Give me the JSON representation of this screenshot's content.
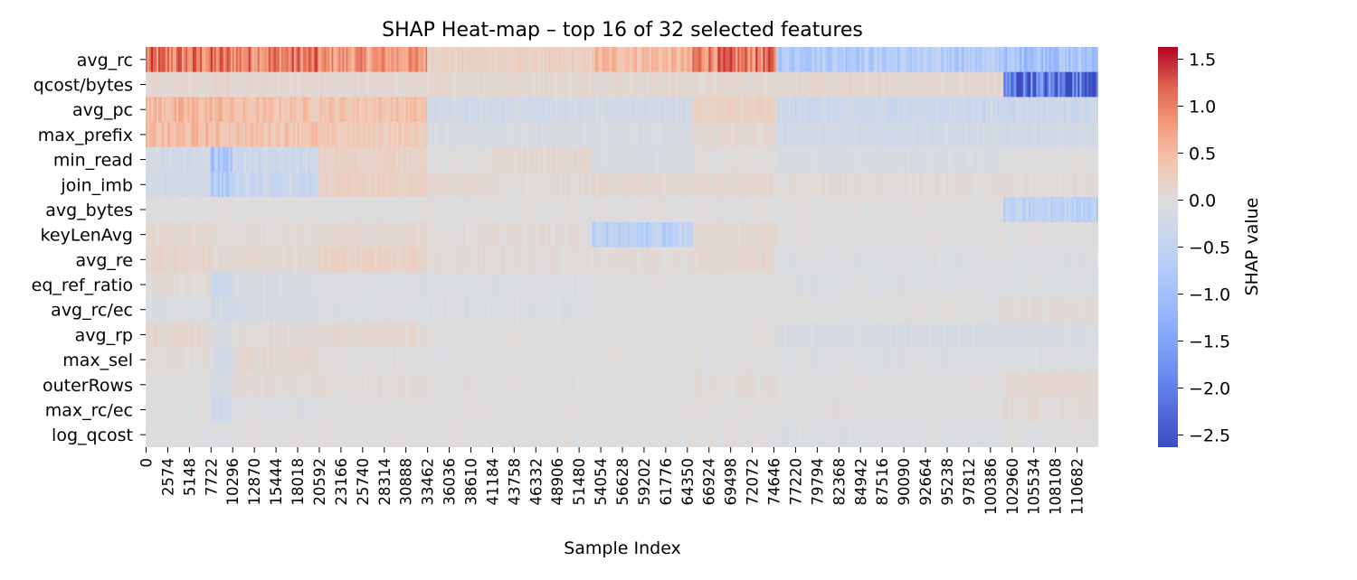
{
  "chart_data": {
    "type": "heatmap",
    "title": "SHAP Heat-map – top 16 of 32 selected features",
    "xlabel": "Sample Index",
    "colorbar_label": "SHAP value",
    "colormap": "coolwarm",
    "color_range": [
      -2.63,
      1.63
    ],
    "colorbar_ticks": [
      1.5,
      1.0,
      0.5,
      0.0,
      -0.5,
      -1.0,
      -1.5,
      -2.0,
      -2.5
    ],
    "colorbar_tick_labels": [
      "1.5",
      "1.0",
      "0.5",
      "0.0",
      "−0.5",
      "−1.0",
      "−1.5",
      "−2.0",
      "−2.5"
    ],
    "x_range": [
      0,
      113256
    ],
    "x_ticks": [
      0,
      2574,
      5148,
      7722,
      10296,
      12870,
      15444,
      18018,
      20592,
      23166,
      25740,
      28314,
      30888,
      33462,
      36036,
      38610,
      41184,
      43758,
      46332,
      48906,
      51480,
      54054,
      56628,
      59202,
      61776,
      64350,
      66924,
      69498,
      72072,
      74646,
      77220,
      79794,
      82368,
      84942,
      87516,
      90090,
      92664,
      95238,
      97812,
      100386,
      102960,
      105534,
      108108,
      110682
    ],
    "features": [
      "avg_rc",
      "qcost/bytes",
      "avg_pc",
      "max_prefix",
      "min_read",
      "join_imb",
      "avg_bytes",
      "keyLenAvg",
      "avg_re",
      "eq_ref_ratio",
      "avg_rc/ec",
      "avg_rp",
      "max_sel",
      "outerRows",
      "max_rc/ec",
      "log_qcost"
    ],
    "segment_boundaries": [
      0,
      7722,
      10296,
      20592,
      33462,
      41184,
      53000,
      65000,
      75000,
      102000,
      113256
    ],
    "segment_mean_shap": [
      [
        1.0,
        1.0,
        1.0,
        0.8,
        0.2,
        0.2,
        0.5,
        1.0,
        -0.7,
        -0.9
      ],
      [
        0.1,
        0.15,
        0.1,
        0.1,
        0.1,
        0.1,
        0.1,
        0.1,
        0.1,
        -2.2
      ],
      [
        0.5,
        0.5,
        0.4,
        0.4,
        -0.2,
        -0.2,
        -0.2,
        0.2,
        -0.3,
        -0.3
      ],
      [
        0.45,
        0.4,
        0.4,
        0.3,
        -0.1,
        -0.1,
        -0.1,
        0.1,
        -0.2,
        -0.2
      ],
      [
        -0.2,
        -0.8,
        -0.3,
        0.2,
        0.0,
        0.1,
        -0.1,
        0.0,
        -0.1,
        0.0
      ],
      [
        -0.2,
        -0.7,
        -0.4,
        0.2,
        0.1,
        0.05,
        0.1,
        0.1,
        0.05,
        0.05
      ],
      [
        0.0,
        0.0,
        0.0,
        0.0,
        0.0,
        0.0,
        0.0,
        0.0,
        0.0,
        -0.55
      ],
      [
        0.1,
        0.05,
        0.05,
        0.1,
        0.05,
        0.05,
        -0.6,
        0.1,
        0.0,
        0.0
      ],
      [
        0.15,
        0.1,
        0.1,
        0.2,
        0.05,
        0.05,
        0.05,
        0.1,
        -0.05,
        -0.05
      ],
      [
        0.05,
        -0.3,
        -0.1,
        -0.05,
        -0.05,
        -0.05,
        0.0,
        0.0,
        -0.05,
        -0.05
      ],
      [
        -0.05,
        -0.2,
        -0.15,
        -0.05,
        -0.05,
        -0.05,
        0.0,
        0.0,
        0.0,
        0.05
      ],
      [
        0.1,
        -0.1,
        0.05,
        0.1,
        0.0,
        0.0,
        0.0,
        0.0,
        -0.1,
        -0.1
      ],
      [
        0.05,
        -0.2,
        0.1,
        0.0,
        0.0,
        0.0,
        0.0,
        0.0,
        -0.05,
        -0.05
      ],
      [
        0.0,
        -0.15,
        0.05,
        0.05,
        0.0,
        0.0,
        0.0,
        0.05,
        0.0,
        0.1
      ],
      [
        0.0,
        -0.25,
        -0.05,
        0.0,
        0.0,
        0.0,
        0.0,
        0.0,
        0.0,
        0.05
      ],
      [
        0.0,
        -0.05,
        0.0,
        0.0,
        0.0,
        0.0,
        0.0,
        0.0,
        -0.05,
        0.0
      ]
    ]
  }
}
